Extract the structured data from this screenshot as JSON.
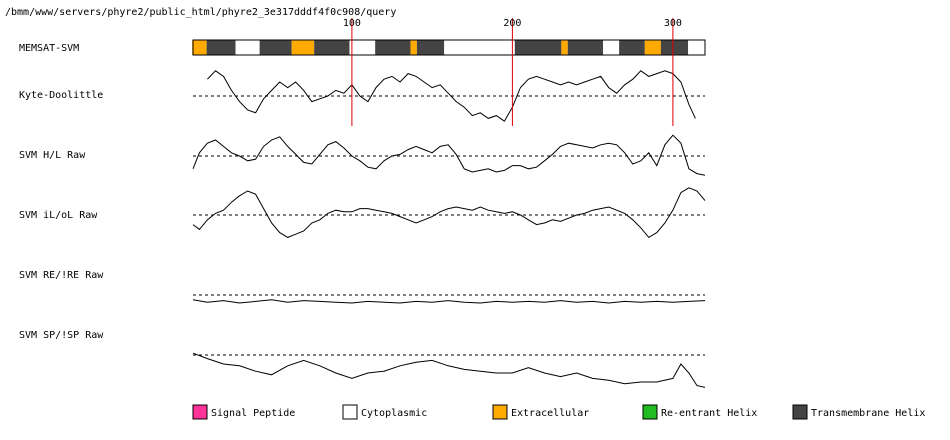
{
  "path_title": "/bmm/www/servers/phyre2/public_html/phyre2_3e317dddf4f0c908/query",
  "chart_data": {
    "type": "line",
    "title": "/bmm/www/servers/phyre2/public_html/phyre2_3e317dddf4f0c908/query",
    "x_range": [
      1,
      320
    ],
    "ticks": [
      {
        "value": 100,
        "label": "100"
      },
      {
        "value": 200,
        "label": "200"
      },
      {
        "value": 300,
        "label": "300"
      }
    ],
    "tracks": [
      {
        "label": "MEMSAT-SVM",
        "kind": "segments"
      },
      {
        "label": "Kyte-Doolittle",
        "kind": "line"
      },
      {
        "label": "SVM H/L Raw",
        "kind": "line"
      },
      {
        "label": "SVM iL/oL Raw",
        "kind": "line"
      },
      {
        "label": "SVM RE/!RE Raw",
        "kind": "line"
      },
      {
        "label": "SVM SP/!SP Raw",
        "kind": "line"
      }
    ],
    "memsat_segments": [
      {
        "start": 1,
        "end": 9,
        "type": "extracellular"
      },
      {
        "start": 10,
        "end": 27,
        "type": "transmembrane"
      },
      {
        "start": 28,
        "end": 42,
        "type": "cytoplasmic"
      },
      {
        "start": 43,
        "end": 62,
        "type": "transmembrane"
      },
      {
        "start": 63,
        "end": 76,
        "type": "extracellular"
      },
      {
        "start": 77,
        "end": 98,
        "type": "transmembrane"
      },
      {
        "start": 99,
        "end": 114,
        "type": "cytoplasmic"
      },
      {
        "start": 115,
        "end": 136,
        "type": "transmembrane"
      },
      {
        "start": 137,
        "end": 140,
        "type": "extracellular"
      },
      {
        "start": 141,
        "end": 157,
        "type": "transmembrane"
      },
      {
        "start": 158,
        "end": 201,
        "type": "cytoplasmic"
      },
      {
        "start": 202,
        "end": 230,
        "type": "transmembrane"
      },
      {
        "start": 231,
        "end": 234,
        "type": "extracellular"
      },
      {
        "start": 235,
        "end": 256,
        "type": "transmembrane"
      },
      {
        "start": 257,
        "end": 266,
        "type": "cytoplasmic"
      },
      {
        "start": 267,
        "end": 282,
        "type": "transmembrane"
      },
      {
        "start": 283,
        "end": 292,
        "type": "extracellular"
      },
      {
        "start": 293,
        "end": 309,
        "type": "transmembrane"
      },
      {
        "start": 310,
        "end": 320,
        "type": "cytoplasmic"
      }
    ],
    "series": [
      {
        "name": "Kyte-Doolittle",
        "x": [
          10,
          15,
          20,
          25,
          30,
          35,
          40,
          45,
          50,
          55,
          60,
          65,
          70,
          75,
          80,
          85,
          90,
          95,
          100,
          105,
          110,
          115,
          120,
          125,
          130,
          135,
          140,
          145,
          150,
          155,
          160,
          165,
          170,
          175,
          180,
          185,
          190,
          195,
          200,
          205,
          210,
          215,
          220,
          225,
          230,
          235,
          240,
          245,
          250,
          255,
          260,
          265,
          270,
          275,
          280,
          285,
          290,
          295,
          300,
          305,
          310,
          314
        ],
        "values": [
          0.6,
          0.9,
          0.7,
          0.2,
          -0.2,
          -0.5,
          -0.6,
          -0.1,
          0.2,
          0.5,
          0.3,
          0.5,
          0.2,
          -0.2,
          -0.1,
          0.0,
          0.2,
          0.1,
          0.4,
          0.0,
          -0.2,
          0.3,
          0.6,
          0.7,
          0.5,
          0.8,
          0.7,
          0.5,
          0.3,
          0.4,
          0.1,
          -0.2,
          -0.4,
          -0.7,
          -0.6,
          -0.8,
          -0.7,
          -0.9,
          -0.4,
          0.3,
          0.6,
          0.7,
          0.6,
          0.5,
          0.4,
          0.5,
          0.4,
          0.5,
          0.6,
          0.7,
          0.3,
          0.1,
          0.4,
          0.6,
          0.9,
          0.7,
          0.8,
          0.9,
          0.8,
          0.5,
          -0.3,
          -0.8
        ]
      },
      {
        "name": "SVM H/L Raw",
        "x": [
          1,
          5,
          10,
          15,
          20,
          25,
          30,
          35,
          40,
          45,
          50,
          55,
          60,
          65,
          70,
          75,
          80,
          85,
          90,
          95,
          100,
          105,
          110,
          115,
          120,
          125,
          130,
          135,
          140,
          145,
          150,
          155,
          160,
          165,
          170,
          175,
          180,
          185,
          190,
          195,
          200,
          205,
          210,
          215,
          220,
          225,
          230,
          235,
          240,
          245,
          250,
          255,
          260,
          265,
          270,
          275,
          280,
          285,
          290,
          295,
          300,
          305,
          310,
          315,
          320
        ],
        "values": [
          -0.8,
          0.2,
          0.8,
          1.0,
          0.6,
          0.2,
          0.0,
          -0.3,
          -0.2,
          0.6,
          1.0,
          1.2,
          0.6,
          0.1,
          -0.4,
          -0.5,
          0.1,
          0.7,
          0.9,
          0.5,
          0.0,
          -0.3,
          -0.7,
          -0.8,
          -0.3,
          0.0,
          0.1,
          0.4,
          0.6,
          0.4,
          0.2,
          0.6,
          0.7,
          0.1,
          -0.8,
          -1.0,
          -0.9,
          -0.8,
          -1.0,
          -0.9,
          -0.6,
          -0.6,
          -0.8,
          -0.7,
          -0.3,
          0.1,
          0.6,
          0.8,
          0.7,
          0.6,
          0.5,
          0.7,
          0.8,
          0.7,
          0.2,
          -0.5,
          -0.3,
          0.2,
          -0.6,
          0.7,
          1.3,
          0.8,
          -0.8,
          -1.1,
          -1.2
        ]
      },
      {
        "name": "SVM iL/oL Raw",
        "x": [
          1,
          5,
          10,
          15,
          20,
          25,
          30,
          35,
          40,
          45,
          50,
          55,
          60,
          65,
          70,
          75,
          80,
          85,
          90,
          95,
          100,
          105,
          110,
          115,
          120,
          125,
          130,
          135,
          140,
          145,
          150,
          155,
          160,
          165,
          170,
          175,
          180,
          185,
          190,
          195,
          200,
          205,
          210,
          215,
          220,
          225,
          230,
          235,
          240,
          245,
          250,
          255,
          260,
          265,
          270,
          275,
          280,
          285,
          290,
          295,
          300,
          305,
          310,
          315,
          320
        ],
        "values": [
          -0.6,
          -0.9,
          -0.3,
          0.1,
          0.3,
          0.8,
          1.2,
          1.5,
          1.3,
          0.4,
          -0.5,
          -1.1,
          -1.4,
          -1.2,
          -1.0,
          -0.5,
          -0.3,
          0.1,
          0.3,
          0.2,
          0.2,
          0.4,
          0.4,
          0.3,
          0.2,
          0.1,
          -0.1,
          -0.3,
          -0.5,
          -0.3,
          -0.1,
          0.2,
          0.4,
          0.5,
          0.4,
          0.3,
          0.5,
          0.3,
          0.2,
          0.1,
          0.2,
          0.0,
          -0.3,
          -0.6,
          -0.5,
          -0.3,
          -0.4,
          -0.2,
          0.0,
          0.1,
          0.3,
          0.4,
          0.5,
          0.3,
          0.1,
          -0.3,
          -0.8,
          -1.4,
          -1.1,
          -0.5,
          0.3,
          1.4,
          1.7,
          1.5,
          0.9
        ]
      },
      {
        "name": "SVM RE/!RE Raw",
        "x": [
          1,
          10,
          20,
          30,
          40,
          50,
          60,
          70,
          80,
          90,
          100,
          110,
          120,
          130,
          140,
          150,
          160,
          170,
          180,
          190,
          200,
          210,
          220,
          230,
          240,
          250,
          260,
          270,
          280,
          290,
          300,
          310,
          320
        ],
        "values": [
          -0.6,
          -0.9,
          -0.7,
          -1.0,
          -0.8,
          -0.6,
          -0.9,
          -0.7,
          -0.8,
          -0.9,
          -1.0,
          -0.8,
          -0.9,
          -1.0,
          -0.8,
          -0.9,
          -0.7,
          -0.9,
          -1.0,
          -0.8,
          -0.9,
          -0.8,
          -0.9,
          -0.7,
          -0.9,
          -0.8,
          -1.0,
          -0.8,
          -0.9,
          -0.8,
          -0.9,
          -0.8,
          -0.7
        ]
      },
      {
        "name": "SVM SP/!SP Raw",
        "x": [
          1,
          10,
          20,
          30,
          40,
          50,
          60,
          70,
          80,
          90,
          100,
          110,
          120,
          130,
          140,
          150,
          160,
          170,
          180,
          190,
          200,
          210,
          220,
          230,
          240,
          250,
          260,
          270,
          280,
          290,
          300,
          305,
          310,
          315,
          320
        ],
        "values": [
          0.1,
          -0.2,
          -0.5,
          -0.6,
          -0.9,
          -1.1,
          -0.6,
          -0.3,
          -0.6,
          -1.0,
          -1.3,
          -1.0,
          -0.9,
          -0.6,
          -0.4,
          -0.3,
          -0.6,
          -0.8,
          -0.9,
          -1.0,
          -1.0,
          -0.7,
          -1.0,
          -1.2,
          -1.0,
          -1.3,
          -1.4,
          -1.6,
          -1.5,
          -1.5,
          -1.3,
          -0.5,
          -1.0,
          -1.7,
          -1.8
        ]
      }
    ],
    "legend": [
      {
        "label": "Signal Peptide",
        "color": "#ff3399"
      },
      {
        "label": "Cytoplasmic",
        "color": "#ffffff"
      },
      {
        "label": "Extracellular",
        "color": "#ffaa00"
      },
      {
        "label": "Re-entrant Helix",
        "color": "#22bb22"
      },
      {
        "label": "Transmembrane Helix",
        "color": "#444444"
      }
    ],
    "legend_placement": "bottom",
    "colors": {
      "line": "#000000",
      "marker": "#dd0000",
      "baseline": "#000000",
      "extracellular": "#ffaa00",
      "transmembrane": "#444444",
      "cytoplasmic": "#ffffff",
      "signal": "#ff3399",
      "reentrant": "#22bb22"
    }
  }
}
